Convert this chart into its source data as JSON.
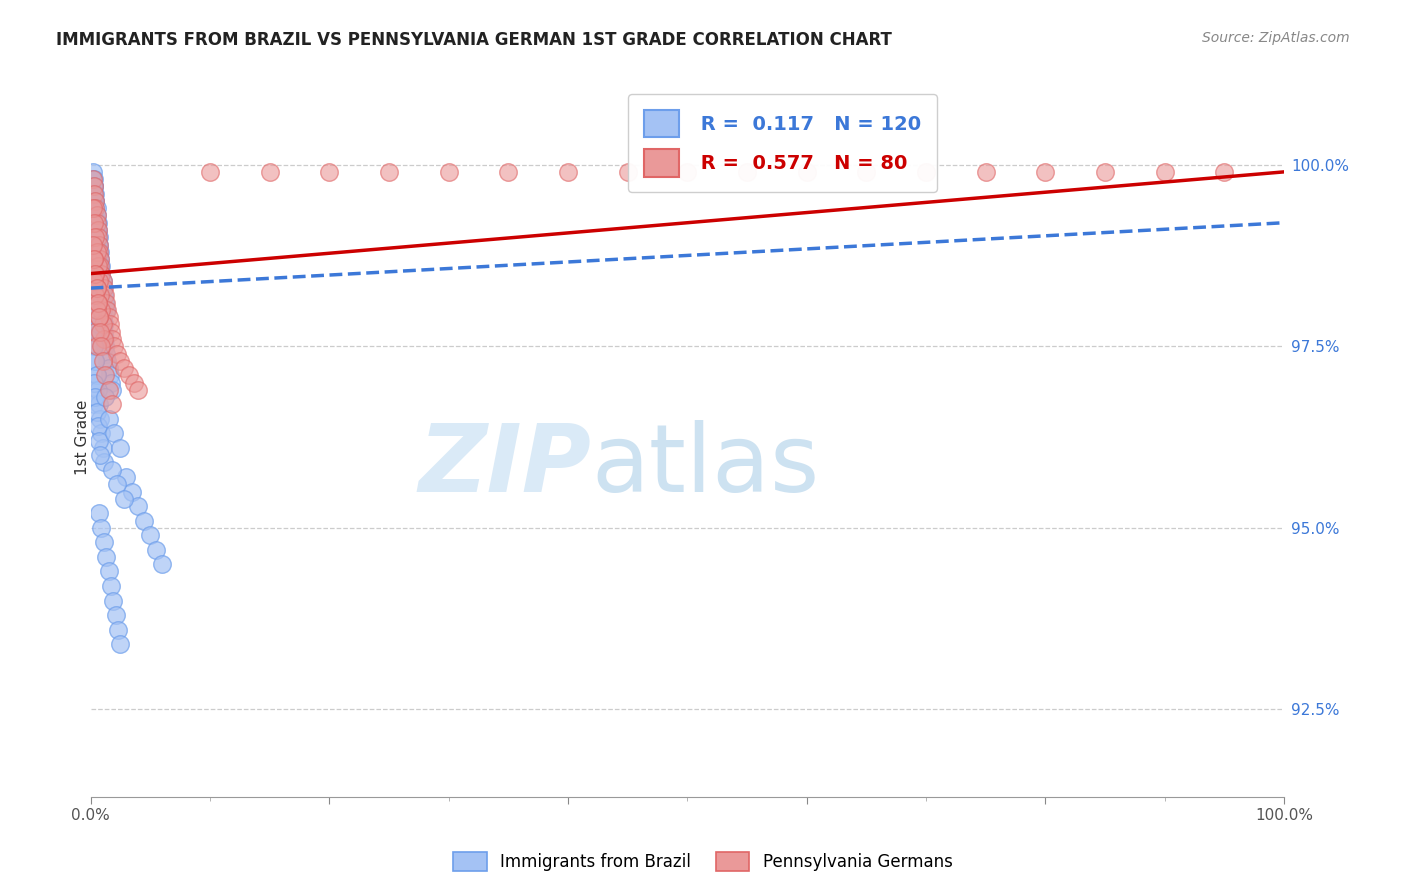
{
  "title": "IMMIGRANTS FROM BRAZIL VS PENNSYLVANIA GERMAN 1ST GRADE CORRELATION CHART",
  "source": "Source: ZipAtlas.com",
  "ylabel": "1st Grade",
  "right_yticks": [
    92.5,
    95.0,
    97.5,
    100.0
  ],
  "right_yticklabels": [
    "92.5%",
    "95.0%",
    "97.5%",
    "100.0%"
  ],
  "blue_R": 0.117,
  "blue_N": 120,
  "pink_R": 0.577,
  "pink_N": 80,
  "blue_color": "#a4c2f4",
  "pink_color": "#ea9999",
  "blue_edge_color": "#6d9eeb",
  "pink_edge_color": "#e06666",
  "blue_line_color": "#3c78d8",
  "pink_line_color": "#cc0000",
  "legend_label_blue": "Immigrants from Brazil",
  "legend_label_pink": "Pennsylvania Germans",
  "xlim": [
    0.0,
    1.0
  ],
  "ylim": [
    91.3,
    101.2
  ],
  "blue_x": [
    0.002,
    0.003,
    0.003,
    0.004,
    0.004,
    0.004,
    0.005,
    0.005,
    0.005,
    0.006,
    0.006,
    0.006,
    0.007,
    0.007,
    0.008,
    0.008,
    0.009,
    0.009,
    0.01,
    0.01,
    0.011,
    0.011,
    0.012,
    0.012,
    0.013,
    0.014,
    0.015,
    0.016,
    0.017,
    0.018,
    0.002,
    0.003,
    0.004,
    0.005,
    0.006,
    0.007,
    0.008,
    0.009,
    0.01,
    0.011,
    0.003,
    0.004,
    0.005,
    0.006,
    0.007,
    0.008,
    0.004,
    0.005,
    0.006,
    0.007,
    0.002,
    0.003,
    0.004,
    0.005,
    0.006,
    0.003,
    0.004,
    0.005,
    0.004,
    0.003,
    0.002,
    0.003,
    0.003,
    0.004,
    0.004,
    0.005,
    0.005,
    0.006,
    0.006,
    0.007,
    0.007,
    0.008,
    0.008,
    0.009,
    0.009,
    0.01,
    0.01,
    0.011,
    0.012,
    0.013,
    0.002,
    0.003,
    0.004,
    0.005,
    0.006,
    0.007,
    0.008,
    0.009,
    0.01,
    0.011,
    0.003,
    0.004,
    0.005,
    0.006,
    0.007,
    0.008,
    0.015,
    0.02,
    0.025,
    0.03,
    0.035,
    0.04,
    0.045,
    0.05,
    0.055,
    0.06,
    0.018,
    0.022,
    0.028,
    0.012,
    0.007,
    0.009,
    0.011,
    0.013,
    0.015,
    0.017,
    0.019,
    0.021,
    0.023,
    0.025
  ],
  "blue_y": [
    99.8,
    99.7,
    99.6,
    99.5,
    99.4,
    99.3,
    99.2,
    99.1,
    99.0,
    98.9,
    98.8,
    98.7,
    98.6,
    98.5,
    98.4,
    98.3,
    98.2,
    98.1,
    98.0,
    97.9,
    97.8,
    97.7,
    97.6,
    97.5,
    97.4,
    97.3,
    97.2,
    97.1,
    97.0,
    96.9,
    99.6,
    99.4,
    99.2,
    99.0,
    98.8,
    98.6,
    98.4,
    98.2,
    98.0,
    97.8,
    98.9,
    98.7,
    98.5,
    98.3,
    98.1,
    97.9,
    98.3,
    98.1,
    97.9,
    97.7,
    98.6,
    98.4,
    98.2,
    98.0,
    97.8,
    97.5,
    97.3,
    97.1,
    96.9,
    96.7,
    99.9,
    99.8,
    99.7,
    99.6,
    99.5,
    99.4,
    99.3,
    99.2,
    99.1,
    99.0,
    98.9,
    98.8,
    98.7,
    98.6,
    98.5,
    98.4,
    98.3,
    98.2,
    98.1,
    98.0,
    97.7,
    97.5,
    97.3,
    97.1,
    96.9,
    96.7,
    96.5,
    96.3,
    96.1,
    95.9,
    97.0,
    96.8,
    96.6,
    96.4,
    96.2,
    96.0,
    96.5,
    96.3,
    96.1,
    95.7,
    95.5,
    95.3,
    95.1,
    94.9,
    94.7,
    94.5,
    95.8,
    95.6,
    95.4,
    96.8,
    95.2,
    95.0,
    94.8,
    94.6,
    94.4,
    94.2,
    94.0,
    93.8,
    93.6,
    93.4
  ],
  "pink_x": [
    0.002,
    0.003,
    0.003,
    0.004,
    0.004,
    0.005,
    0.005,
    0.006,
    0.006,
    0.007,
    0.007,
    0.008,
    0.008,
    0.009,
    0.01,
    0.011,
    0.012,
    0.013,
    0.014,
    0.015,
    0.016,
    0.017,
    0.018,
    0.02,
    0.022,
    0.025,
    0.028,
    0.032,
    0.036,
    0.04,
    0.002,
    0.003,
    0.004,
    0.005,
    0.006,
    0.007,
    0.008,
    0.009,
    0.01,
    0.011,
    0.003,
    0.004,
    0.005,
    0.006,
    0.007,
    0.003,
    0.004,
    0.005,
    0.004,
    0.005,
    0.1,
    0.15,
    0.2,
    0.25,
    0.3,
    0.35,
    0.4,
    0.45,
    0.5,
    0.55,
    0.6,
    0.65,
    0.7,
    0.75,
    0.8,
    0.85,
    0.9,
    0.95,
    0.002,
    0.003,
    0.004,
    0.005,
    0.006,
    0.007,
    0.008,
    0.009,
    0.01,
    0.012,
    0.015,
    0.018
  ],
  "pink_y": [
    99.8,
    99.7,
    99.6,
    99.5,
    99.4,
    99.3,
    99.2,
    99.1,
    99.0,
    98.9,
    98.8,
    98.7,
    98.6,
    98.5,
    98.4,
    98.3,
    98.2,
    98.1,
    98.0,
    97.9,
    97.8,
    97.7,
    97.6,
    97.5,
    97.4,
    97.3,
    97.2,
    97.1,
    97.0,
    96.9,
    99.4,
    99.2,
    99.0,
    98.8,
    98.6,
    98.4,
    98.2,
    98.0,
    97.8,
    97.6,
    98.7,
    98.5,
    98.3,
    98.1,
    97.9,
    98.4,
    98.2,
    98.0,
    97.7,
    97.5,
    99.9,
    99.9,
    99.9,
    99.9,
    99.9,
    99.9,
    99.9,
    99.9,
    99.9,
    99.9,
    99.9,
    99.9,
    99.9,
    99.9,
    99.9,
    99.9,
    99.9,
    99.9,
    98.9,
    98.7,
    98.5,
    98.3,
    98.1,
    97.9,
    97.7,
    97.5,
    97.3,
    97.1,
    96.9,
    96.7
  ]
}
